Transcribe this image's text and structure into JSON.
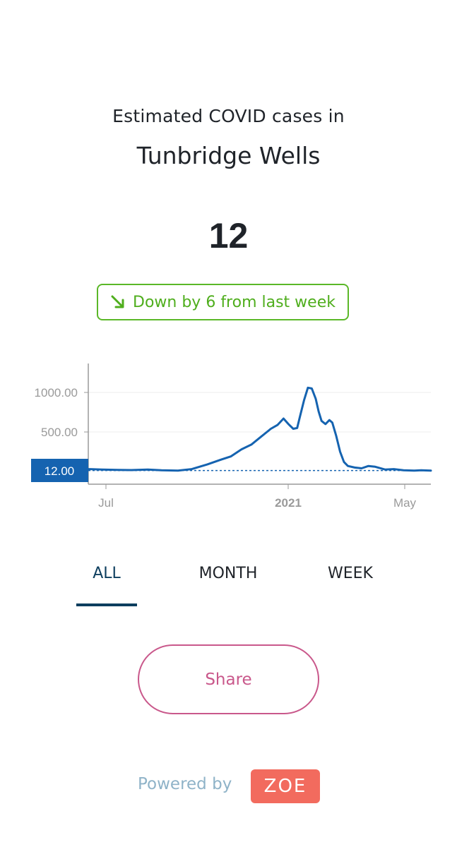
{
  "header": {
    "subtitle": "Estimated COVID cases in",
    "location": "Tunbridge Wells"
  },
  "current_cases": "12",
  "trend": {
    "label": "Down by 6 from last week",
    "direction": "down",
    "color": "#4fae1d",
    "icon": "arrow-down-right-icon"
  },
  "chart_data": {
    "type": "line",
    "series": [
      {
        "color": "#1563b0",
        "points": [
          [
            "2020-06-01",
            30
          ],
          [
            "2020-06-15",
            25
          ],
          [
            "2020-07-01",
            20
          ],
          [
            "2020-07-15",
            18
          ],
          [
            "2020-08-01",
            25
          ],
          [
            "2020-08-15",
            15
          ],
          [
            "2020-09-01",
            12
          ],
          [
            "2020-09-15",
            30
          ],
          [
            "2020-10-01",
            90
          ],
          [
            "2020-10-15",
            150
          ],
          [
            "2020-10-25",
            190
          ],
          [
            "2020-11-05",
            280
          ],
          [
            "2020-11-15",
            340
          ],
          [
            "2020-11-25",
            440
          ],
          [
            "2020-12-01",
            500
          ],
          [
            "2020-12-05",
            540
          ],
          [
            "2020-12-12",
            590
          ],
          [
            "2020-12-18",
            670
          ],
          [
            "2020-12-23",
            600
          ],
          [
            "2020-12-28",
            540
          ],
          [
            "2021-01-01",
            550
          ],
          [
            "2021-01-04",
            700
          ],
          [
            "2021-01-08",
            900
          ],
          [
            "2021-01-12",
            1060
          ],
          [
            "2021-01-16",
            1050
          ],
          [
            "2021-01-20",
            920
          ],
          [
            "2021-01-23",
            760
          ],
          [
            "2021-01-26",
            640
          ],
          [
            "2021-01-30",
            600
          ],
          [
            "2021-02-03",
            650
          ],
          [
            "2021-02-06",
            620
          ],
          [
            "2021-02-10",
            450
          ],
          [
            "2021-02-14",
            250
          ],
          [
            "2021-02-18",
            120
          ],
          [
            "2021-02-22",
            70
          ],
          [
            "2021-03-01",
            50
          ],
          [
            "2021-03-08",
            40
          ],
          [
            "2021-03-15",
            70
          ],
          [
            "2021-03-22",
            60
          ],
          [
            "2021-04-01",
            25
          ],
          [
            "2021-04-10",
            30
          ],
          [
            "2021-04-20",
            15
          ],
          [
            "2021-05-01",
            12
          ],
          [
            "2021-05-08",
            15
          ],
          [
            "2021-05-18",
            12
          ]
        ]
      }
    ],
    "x_ticks": [
      "Jul",
      "2021",
      "May"
    ],
    "y_ticks": [
      "1000.00",
      "500.00"
    ],
    "current_marker": "12.00",
    "ylim": [
      0,
      1100
    ],
    "reference_value": 12
  },
  "tabs": [
    {
      "label": "ALL",
      "active": true
    },
    {
      "label": "MONTH",
      "active": false
    },
    {
      "label": "WEEK",
      "active": false
    }
  ],
  "share_label": "Share",
  "footer": {
    "powered_by": "Powered by",
    "logo_text": "ZOE"
  },
  "colors": {
    "accent_blue": "#1563b0",
    "trend_green": "#4fae1d",
    "share_pink": "#c9588b",
    "zoe_coral": "#f26b5e",
    "tab_active": "#0d3e5e"
  }
}
